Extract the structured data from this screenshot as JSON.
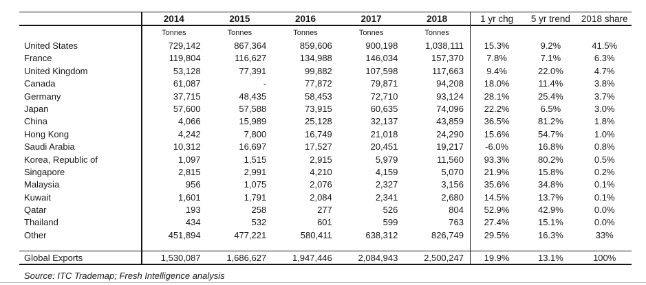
{
  "chart_data": {
    "type": "table",
    "label_column": "",
    "year_columns": [
      "2014",
      "2015",
      "2016",
      "2017",
      "2018"
    ],
    "unit_label": "Tonnes",
    "stat_columns": [
      "1 yr chg",
      "5 yr trend",
      "2018 share"
    ],
    "rows": [
      {
        "label": "United States",
        "tonnes": [
          "729,142",
          "867,364",
          "859,606",
          "900,198",
          "1,038,111"
        ],
        "stats": [
          "15.3%",
          "9.2%",
          "41.5%"
        ]
      },
      {
        "label": "France",
        "tonnes": [
          "119,804",
          "116,627",
          "134,988",
          "146,034",
          "157,370"
        ],
        "stats": [
          "7.8%",
          "7.1%",
          "6.3%"
        ]
      },
      {
        "label": "United Kingdom",
        "tonnes": [
          "53,128",
          "77,391",
          "99,882",
          "107,598",
          "117,663"
        ],
        "stats": [
          "9.4%",
          "22.0%",
          "4.7%"
        ]
      },
      {
        "label": "Canada",
        "tonnes": [
          "61,087",
          "-",
          "77,872",
          "79,871",
          "94,208"
        ],
        "stats": [
          "18.0%",
          "11.4%",
          "3.8%"
        ]
      },
      {
        "label": "Germany",
        "tonnes": [
          "37,715",
          "48,435",
          "58,453",
          "72,710",
          "93,124"
        ],
        "stats": [
          "28.1%",
          "25.4%",
          "3.7%"
        ]
      },
      {
        "label": "Japan",
        "tonnes": [
          "57,600",
          "57,588",
          "73,915",
          "60,635",
          "74,096"
        ],
        "stats": [
          "22.2%",
          "6.5%",
          "3.0%"
        ]
      },
      {
        "label": "China",
        "tonnes": [
          "4,066",
          "15,989",
          "25,128",
          "32,137",
          "43,859"
        ],
        "stats": [
          "36.5%",
          "81.2%",
          "1.8%"
        ]
      },
      {
        "label": "Hong Kong",
        "tonnes": [
          "4,242",
          "7,800",
          "16,749",
          "21,018",
          "24,290"
        ],
        "stats": [
          "15.6%",
          "54.7%",
          "1.0%"
        ]
      },
      {
        "label": "Saudi Arabia",
        "tonnes": [
          "10,312",
          "16,697",
          "17,527",
          "20,451",
          "19,217"
        ],
        "stats": [
          "-6.0%",
          "16.8%",
          "0.8%"
        ]
      },
      {
        "label": "Korea, Republic of",
        "tonnes": [
          "1,097",
          "1,515",
          "2,915",
          "5,979",
          "11,560"
        ],
        "stats": [
          "93.3%",
          "80.2%",
          "0.5%"
        ]
      },
      {
        "label": "Singapore",
        "tonnes": [
          "2,815",
          "2,991",
          "4,210",
          "4,159",
          "5,070"
        ],
        "stats": [
          "21.9%",
          "15.8%",
          "0.2%"
        ]
      },
      {
        "label": "Malaysia",
        "tonnes": [
          "956",
          "1,075",
          "2,076",
          "2,327",
          "3,156"
        ],
        "stats": [
          "35.6%",
          "34.8%",
          "0.1%"
        ]
      },
      {
        "label": "Kuwait",
        "tonnes": [
          "1,601",
          "1,791",
          "2,084",
          "2,341",
          "2,680"
        ],
        "stats": [
          "14.5%",
          "13.7%",
          "0.1%"
        ]
      },
      {
        "label": "Qatar",
        "tonnes": [
          "193",
          "258",
          "277",
          "526",
          "804"
        ],
        "stats": [
          "52.9%",
          "42.9%",
          "0.0%"
        ]
      },
      {
        "label": "Thailand",
        "tonnes": [
          "434",
          "532",
          "601",
          "599",
          "763"
        ],
        "stats": [
          "27.4%",
          "15.1%",
          "0.0%"
        ]
      },
      {
        "label": "Other",
        "tonnes": [
          "451,894",
          "477,221",
          "580,411",
          "638,312",
          "826,749"
        ],
        "stats": [
          "29.5%",
          "16.3%",
          "33%"
        ]
      }
    ],
    "total_row": {
      "label": "Global Exports",
      "tonnes": [
        "1,530,087",
        "1,686,627",
        "1,947,446",
        "2,084,943",
        "2,500,247"
      ],
      "stats": [
        "19.9%",
        "13.1%",
        "100%"
      ]
    },
    "source_note": "Source: ITC Trademap; Fresh Intelligence analysis"
  }
}
